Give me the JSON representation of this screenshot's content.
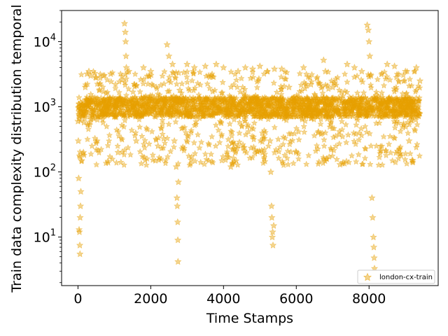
{
  "chart_data": {
    "type": "scatter",
    "title": "",
    "xlabel": "Time Stamps",
    "ylabel": "Train data complexity distribution temporal",
    "x_scale": "linear",
    "y_scale": "log",
    "xlim": [
      -450,
      9900
    ],
    "ylim": [
      1.8,
      30000
    ],
    "x_ticks": [
      0,
      2000,
      4000,
      6000,
      8000
    ],
    "x_tick_labels": [
      "0",
      "2000",
      "4000",
      "6000",
      "8000"
    ],
    "y_ticks": [
      10,
      100,
      1000,
      10000
    ],
    "y_tick_labels": [
      "10",
      "2",
      "10",
      "3",
      "10",
      "4"
    ],
    "y_tick_bases": [
      "10",
      "10",
      "10",
      "10"
    ],
    "y_tick_exponents": [
      "1",
      "2",
      "3",
      "4"
    ],
    "grid": false,
    "legend_position": "lower-right",
    "series": [
      {
        "name": "london-cx-train",
        "color": "#E69F00",
        "marker": "star",
        "alpha": 0.45,
        "x_range": [
          0,
          9400
        ],
        "typical_range": [
          700,
          1400
        ],
        "points": [
          [
            0,
            600
          ],
          [
            10,
            300
          ],
          [
            20,
            80
          ],
          [
            30,
            13
          ],
          [
            40,
            12
          ],
          [
            50,
            7.5
          ],
          [
            55,
            5.5
          ],
          [
            60,
            20
          ],
          [
            70,
            30
          ],
          [
            80,
            50
          ],
          [
            100,
            150
          ],
          [
            150,
            200
          ],
          [
            200,
            2000
          ],
          [
            250,
            3200
          ],
          [
            300,
            3500
          ],
          [
            350,
            3000
          ],
          [
            500,
            2800
          ],
          [
            700,
            3000
          ],
          [
            900,
            3200
          ],
          [
            1100,
            200
          ],
          [
            1280,
            19000
          ],
          [
            1300,
            14000
          ],
          [
            1310,
            10000
          ],
          [
            1320,
            6000
          ],
          [
            1330,
            4000
          ],
          [
            1400,
            3500
          ],
          [
            1600,
            300
          ],
          [
            1800,
            4000
          ],
          [
            2000,
            3500
          ],
          [
            2200,
            250
          ],
          [
            2450,
            9000
          ],
          [
            2500,
            6000
          ],
          [
            2600,
            4500
          ],
          [
            2650,
            300
          ],
          [
            2700,
            120
          ],
          [
            2720,
            40
          ],
          [
            2730,
            30
          ],
          [
            2740,
            17
          ],
          [
            2745,
            9
          ],
          [
            2750,
            4.2
          ],
          [
            2760,
            70
          ],
          [
            2800,
            1800
          ],
          [
            3000,
            4500
          ],
          [
            3200,
            4000
          ],
          [
            3500,
            4200
          ],
          [
            3800,
            4500
          ],
          [
            4000,
            4000
          ],
          [
            4200,
            120
          ],
          [
            4400,
            3500
          ],
          [
            4600,
            4000
          ],
          [
            4800,
            3800
          ],
          [
            5000,
            4200
          ],
          [
            5200,
            3500
          ],
          [
            5280,
            300
          ],
          [
            5300,
            100
          ],
          [
            5320,
            30
          ],
          [
            5330,
            20
          ],
          [
            5340,
            10
          ],
          [
            5350,
            12
          ],
          [
            5360,
            7.5
          ],
          [
            5380,
            15
          ],
          [
            5400,
            3800
          ],
          [
            5600,
            3800
          ],
          [
            5800,
            2000
          ],
          [
            6000,
            200
          ],
          [
            6200,
            4000
          ],
          [
            6400,
            2200
          ],
          [
            6600,
            400
          ],
          [
            6750,
            5200
          ],
          [
            6800,
            3500
          ],
          [
            7000,
            2000
          ],
          [
            7200,
            130
          ],
          [
            7400,
            4500
          ],
          [
            7600,
            4000
          ],
          [
            7800,
            3500
          ],
          [
            7950,
            18000
          ],
          [
            7980,
            15000
          ],
          [
            8000,
            10000
          ],
          [
            8020,
            6000
          ],
          [
            8050,
            3000
          ],
          [
            8080,
            40
          ],
          [
            8100,
            20
          ],
          [
            8120,
            10
          ],
          [
            8130,
            7
          ],
          [
            8140,
            4.8
          ],
          [
            8150,
            3.3
          ],
          [
            8200,
            1500
          ],
          [
            8500,
            4500
          ],
          [
            8700,
            4200
          ],
          [
            9000,
            3500
          ],
          [
            9100,
            300
          ],
          [
            9200,
            150
          ],
          [
            9300,
            4000
          ],
          [
            9400,
            2500
          ]
        ]
      }
    ]
  }
}
